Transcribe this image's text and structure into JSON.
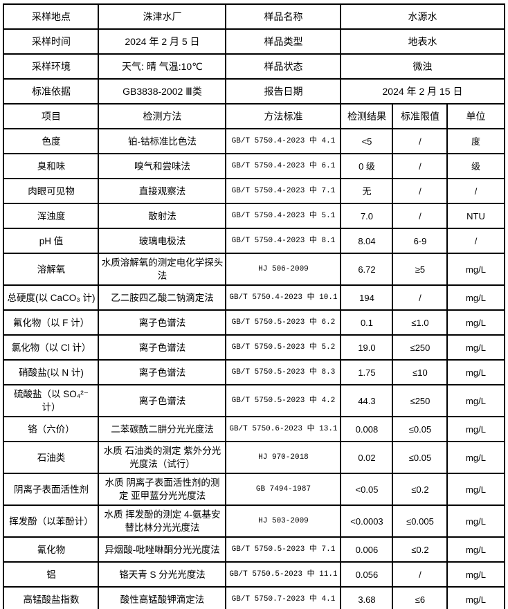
{
  "colors": {
    "border": "#000000",
    "background": "#ffffff",
    "text": "#000000"
  },
  "info_rows": [
    {
      "label_left": "采样地点",
      "value_left": "洙津水厂",
      "label_right": "样品名称",
      "value_right": "水源水"
    },
    {
      "label_left": "采样时间",
      "value_left": "2024 年 2 月 5 日",
      "label_right": "样品类型",
      "value_right": "地表水"
    },
    {
      "label_left": "采样环境",
      "value_left": "天气: 晴 气温:10℃",
      "label_right": "样品状态",
      "value_right": "微浊"
    },
    {
      "label_left": "标准依据",
      "value_left": "GB3838-2002 Ⅲ类",
      "label_right": "报告日期",
      "value_right": "2024 年 2 月 15 日"
    }
  ],
  "header": {
    "item": "项目",
    "method": "检测方法",
    "standard": "方法标准",
    "result": "检测结果",
    "limit": "标准限值",
    "unit": "单位"
  },
  "rows": [
    {
      "item": "色度",
      "method": "铂-钴标准比色法",
      "standard": "GB/T 5750.4-2023 中 4.1",
      "result": "<5",
      "limit": "/",
      "unit": "度"
    },
    {
      "item": "臭和味",
      "method": "嗅气和尝味法",
      "standard": "GB/T 5750.4-2023 中 6.1",
      "result": "0 级",
      "limit": "/",
      "unit": "级"
    },
    {
      "item": "肉眼可见物",
      "method": "直接观察法",
      "standard": "GB/T 5750.4-2023 中 7.1",
      "result": "无",
      "limit": "/",
      "unit": "/"
    },
    {
      "item": "浑浊度",
      "method": "散射法",
      "standard": "GB/T 5750.4-2023 中 5.1",
      "result": "7.0",
      "limit": "/",
      "unit": "NTU"
    },
    {
      "item": "pH 值",
      "method": "玻璃电极法",
      "standard": "GB/T 5750.4-2023 中 8.1",
      "result": "8.04",
      "limit": "6-9",
      "unit": "/"
    },
    {
      "item": "溶解氧",
      "method": "水质溶解氧的测定电化学探头法",
      "standard": "HJ 506-2009",
      "result": "6.72",
      "limit": "≥5",
      "unit": "mg/L"
    },
    {
      "item": "总硬度(以 CaCO₃ 计)",
      "method": "乙二胺四乙酸二钠滴定法",
      "standard": "GB/T 5750.4-2023 中 10.1",
      "result": "194",
      "limit": "/",
      "unit": "mg/L"
    },
    {
      "item": "氟化物（以 F 计）",
      "method": "离子色谱法",
      "standard": "GB/T 5750.5-2023 中 6.2",
      "result": "0.1",
      "limit": "≤1.0",
      "unit": "mg/L"
    },
    {
      "item": "氯化物（以 Cl 计）",
      "method": "离子色谱法",
      "standard": "GB/T 5750.5-2023 中 5.2",
      "result": "19.0",
      "limit": "≤250",
      "unit": "mg/L"
    },
    {
      "item": "硝酸盐(以 N 计)",
      "method": "离子色谱法",
      "standard": "GB/T 5750.5-2023 中 8.3",
      "result": "1.75",
      "limit": "≤10",
      "unit": "mg/L"
    },
    {
      "item": "硫酸盐（以 SO₄²⁻ 计）",
      "method": "离子色谱法",
      "standard": "GB/T 5750.5-2023 中 4.2",
      "result": "44.3",
      "limit": "≤250",
      "unit": "mg/L"
    },
    {
      "item": "铬（六价）",
      "method": "二苯碳酰二肼分光光度法",
      "standard": "GB/T 5750.6-2023 中 13.1",
      "result": "0.008",
      "limit": "≤0.05",
      "unit": "mg/L"
    },
    {
      "item": "石油类",
      "method": "水质 石油类的测定 紫外分光光度法（试行）",
      "standard": "HJ 970-2018",
      "result": "0.02",
      "limit": "≤0.05",
      "unit": "mg/L"
    },
    {
      "item": "阴离子表面活性剂",
      "method": "水质 阴离子表面活性剂的测定 亚甲蓝分光光度法",
      "standard": "GB 7494-1987",
      "result": "<0.05",
      "limit": "≤0.2",
      "unit": "mg/L"
    },
    {
      "item": "挥发酚（以苯酚计）",
      "method": "水质 挥发酚的测定 4-氨基安替比林分光光度法",
      "standard": "HJ 503-2009",
      "result": "<0.0003",
      "limit": "≤0.005",
      "unit": "mg/L"
    },
    {
      "item": "氰化物",
      "method": "异烟酸-吡唑啉酮分光光度法",
      "standard": "GB/T 5750.5-2023 中 7.1",
      "result": "0.006",
      "limit": "≤0.2",
      "unit": "mg/L"
    },
    {
      "item": "铝",
      "method": "铬天青 S 分光光度法",
      "standard": "GB/T 5750.5-2023 中 11.1",
      "result": "0.056",
      "limit": "/",
      "unit": "mg/L"
    },
    {
      "item": "高锰酸盐指数",
      "method": "酸性高锰酸钾滴定法",
      "standard": "GB/T 5750.7-2023 中 4.1",
      "result": "3.68",
      "limit": "≤6",
      "unit": "mg/L"
    }
  ]
}
